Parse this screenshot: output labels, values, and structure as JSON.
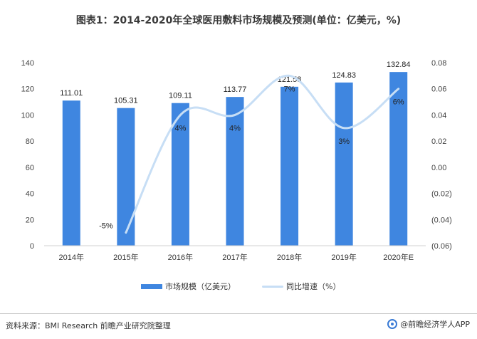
{
  "title": "图表1：2014-2020年全球医用敷料市场规模及预测(单位：亿美元，%)",
  "chart_data": {
    "type": "bar+line",
    "categories": [
      "2014年",
      "2015年",
      "2016年",
      "2017年",
      "2018年",
      "2019年",
      "2020年E"
    ],
    "series": [
      {
        "name": "市场规模（亿美元）",
        "type": "bar",
        "axis": "left",
        "values": [
          111.01,
          105.31,
          109.11,
          113.77,
          121.58,
          124.83,
          132.84
        ],
        "labels": [
          "111.01",
          "105.31",
          "109.11",
          "113.77",
          "121.58",
          "124.83",
          "132.84"
        ],
        "color": "#3f86e0"
      },
      {
        "name": "同比增速（%）",
        "type": "line",
        "axis": "right",
        "values": [
          null,
          -0.05,
          0.04,
          0.04,
          0.07,
          0.03,
          0.06
        ],
        "labels": [
          "",
          "-5%",
          "4%",
          "4%",
          "7%",
          "3%",
          "6%"
        ],
        "color": "#c7def5"
      }
    ],
    "y_left": {
      "range": [
        0,
        140
      ],
      "ticks": [
        "0",
        "20",
        "40",
        "60",
        "80",
        "100",
        "120",
        "140"
      ]
    },
    "y_right": {
      "range": [
        -0.06,
        0.08
      ],
      "ticks": [
        "(0.06)",
        "(0.04)",
        "(0.02)",
        "0.00",
        "0.02",
        "0.04",
        "0.06",
        "0.08"
      ]
    },
    "grid": false,
    "legend": "bottom"
  },
  "legend": {
    "bar_label": "市场规模（亿美元）",
    "line_label": "同比增速（%）"
  },
  "footer": {
    "source": "资料来源：BMI Research 前瞻产业研究院整理",
    "brand": "@前瞻经济学人APP"
  }
}
